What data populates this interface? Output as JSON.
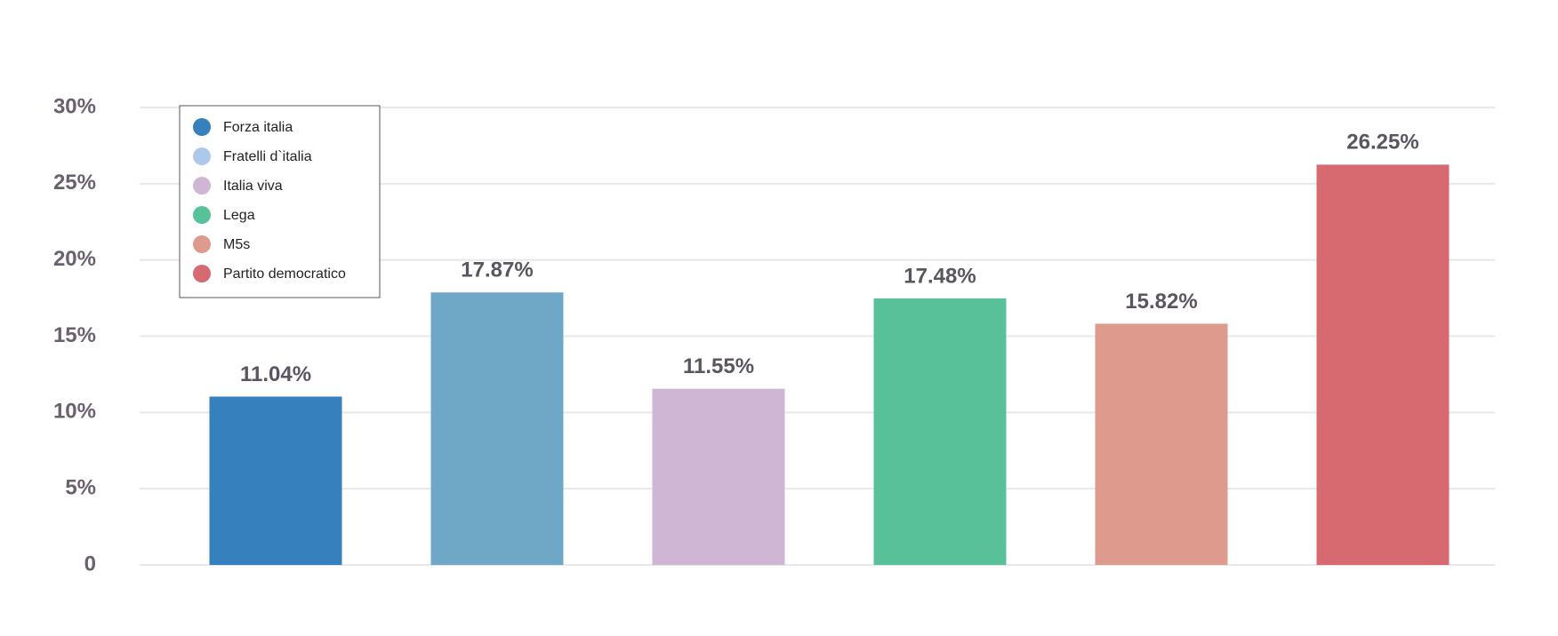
{
  "chart_data": {
    "type": "bar",
    "categories": [
      "Forza italia",
      "Fratelli d`italia",
      "Italia viva",
      "Lega",
      "M5s",
      "Partito democratico"
    ],
    "values": [
      11.04,
      17.87,
      11.55,
      17.48,
      15.82,
      26.25
    ],
    "value_labels": [
      "11.04%",
      "17.87%",
      "11.55%",
      "17.48%",
      "15.82%",
      "26.25%"
    ],
    "colors": [
      "#3680bd",
      "#6ea8c6",
      "#d0b6d5",
      "#58c19a",
      "#de9a8c",
      "#d66a70"
    ],
    "legend_colors": [
      "#3680bd",
      "#aec8ec",
      "#d0b6d5",
      "#58c19a",
      "#de9a8c",
      "#d66a70"
    ],
    "ylim": [
      0,
      30
    ],
    "yticks": [
      0,
      {
        "value": 5,
        "label": "5%"
      },
      {
        "value": 10,
        "label": "10%"
      },
      {
        "value": 15,
        "label": "15%"
      },
      {
        "value": 20,
        "label": "20%"
      },
      {
        "value": 25,
        "label": "25%"
      },
      {
        "value": 30,
        "label": "30%"
      }
    ],
    "grid": true,
    "legend": "upper left"
  }
}
